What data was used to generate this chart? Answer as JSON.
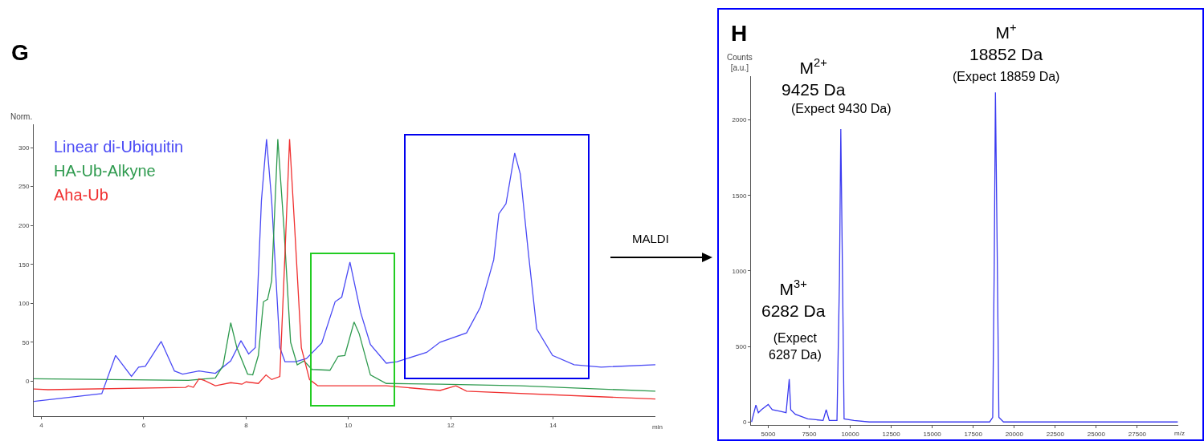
{
  "chart_data": [
    {
      "type": "line",
      "title": "G",
      "xlabel": "min",
      "ylabel": "Norm.",
      "xlim": [
        3.85,
        16
      ],
      "xticks": [
        4,
        6,
        8,
        10,
        12,
        14
      ],
      "ylim": [
        -45,
        330
      ],
      "yticks": [
        0,
        50,
        100,
        150,
        200,
        250,
        300
      ],
      "legend": "top left",
      "annotations": [
        "MALDI"
      ],
      "series": [
        {
          "name": "Linear di-Ubiquitin",
          "color": "#4b4bf5",
          "x": [
            3.85,
            5.18,
            5.45,
            5.76,
            5.9,
            6.03,
            6.34,
            6.6,
            6.76,
            7.08,
            7.4,
            7.7,
            7.9,
            8.05,
            8.18,
            8.3,
            8.4,
            8.5,
            8.66,
            8.76,
            8.97,
            9.18,
            9.48,
            9.74,
            9.87,
            10.03,
            10.24,
            10.43,
            10.74,
            10.95,
            11.53,
            11.79,
            12.31,
            12.58,
            12.84,
            12.94,
            13.08,
            13.25,
            13.36,
            13.52,
            13.68,
            13.99,
            14.41,
            14.94,
            16.0
          ],
          "values": [
            -26,
            -16,
            33,
            6,
            18,
            19,
            51,
            13,
            9,
            13,
            10,
            26,
            52,
            35,
            43,
            232,
            311,
            232,
            43,
            25,
            25,
            29,
            49,
            102,
            108,
            153,
            88,
            47,
            23,
            25,
            37,
            50,
            62,
            95,
            156,
            215,
            228,
            293,
            266,
            163,
            67,
            33,
            21,
            18,
            21
          ]
        },
        {
          "name": "HA-Ub-Alkyne",
          "color": "#2e9a4e",
          "x": [
            3.85,
            6.87,
            7.4,
            7.55,
            7.7,
            7.82,
            8.03,
            8.13,
            8.24,
            8.34,
            8.42,
            8.5,
            8.62,
            8.74,
            8.87,
            9.0,
            9.13,
            9.29,
            9.64,
            9.8,
            9.93,
            10.11,
            10.21,
            10.43,
            10.74,
            11.79,
            13.36,
            16.0
          ],
          "values": [
            3,
            1,
            4,
            20,
            75,
            43,
            9,
            8,
            33,
            102,
            105,
            129,
            311,
            197,
            50,
            21,
            26,
            15,
            14,
            32,
            33,
            76,
            61,
            8,
            -3,
            -4,
            -6,
            -13
          ]
        },
        {
          "name": "Aha-Ub",
          "color": "#f03030",
          "x": [
            3.85,
            4.13,
            6.82,
            6.87,
            6.97,
            7.08,
            7.18,
            7.4,
            7.7,
            7.92,
            8.0,
            8.24,
            8.39,
            8.5,
            8.66,
            8.76,
            8.85,
            8.95,
            9.08,
            9.24,
            9.4,
            9.69,
            10.74,
            11.79,
            12.1,
            12.31,
            16.0
          ],
          "values": [
            -10,
            -11,
            -8,
            -6,
            -8,
            3,
            1,
            -6,
            -2,
            -4,
            -1,
            -3,
            8,
            2,
            6,
            163,
            311,
            197,
            43,
            2,
            -6,
            -6,
            -6,
            -12,
            -6,
            -13,
            -23
          ]
        }
      ]
    },
    {
      "type": "line",
      "title": "H",
      "xlabel": "m/z",
      "ylabel": "Counts\n[a.u.]",
      "xlim": [
        3950,
        30000
      ],
      "xticks": [
        5000,
        7500,
        10000,
        12500,
        15000,
        17500,
        20000,
        22500,
        25000,
        27500
      ],
      "ylim": [
        -20,
        2290
      ],
      "yticks": [
        0,
        500,
        1000,
        1500,
        2000
      ],
      "color": "#3a3af0",
      "x": [
        3985,
        4248,
        4398,
        4586,
        5000,
        5244,
        5714,
        6090,
        6282,
        6372,
        6654,
        7406,
        8346,
        8534,
        8722,
        9192,
        9343,
        9425,
        9531,
        9625,
        10226,
        11166,
        18498,
        18686,
        18780,
        18852,
        18968,
        19062,
        19344,
        29966
      ],
      "values": [
        0,
        112,
        61,
        81,
        116,
        81,
        71,
        61,
        284,
        81,
        51,
        20,
        10,
        81,
        10,
        10,
        944,
        1940,
        944,
        20,
        10,
        0,
        0,
        30,
        1046,
        2183,
        1046,
        30,
        0,
        0
      ],
      "annotations": [
        "M$^{+}$\n18852 Da",
        "(Expect 18859 Da)",
        "M$^{2+}$\n9425 Da",
        "(Expect 9430 Da)",
        "M$^{3+}$\n6282 Da",
        "(Expect\n6287 Da)"
      ]
    }
  ]
}
